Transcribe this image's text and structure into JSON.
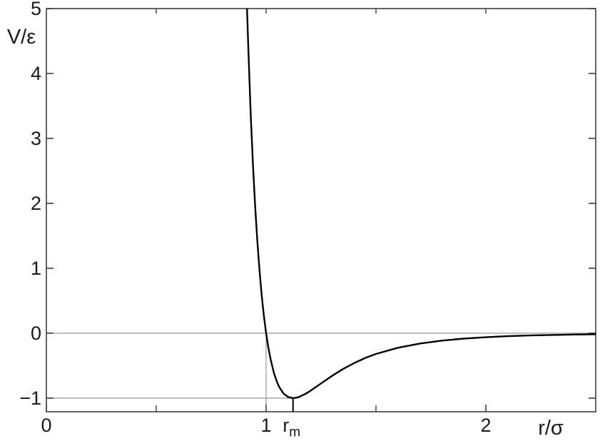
{
  "chart_data": {
    "type": "line",
    "xlabel": "r/σ",
    "ylabel": "V/ε",
    "xlim": [
      0,
      2.5
    ],
    "ylim": [
      -1.21,
      5
    ],
    "grid": false,
    "legend": "none",
    "x_ticks": [
      {
        "value": 0,
        "label": "0"
      },
      {
        "value": 1,
        "label": "1"
      },
      {
        "value": 2,
        "label": "2"
      }
    ],
    "x_minor_ticks": [
      0.5,
      1.5
    ],
    "x_top_ticks": [
      0.5,
      1,
      1.5,
      2
    ],
    "y_ticks": [
      {
        "value": 5,
        "label": "5"
      },
      {
        "value": 4,
        "label": "4"
      },
      {
        "value": 3,
        "label": "3"
      },
      {
        "value": 2,
        "label": "2"
      },
      {
        "value": 1,
        "label": "1"
      },
      {
        "value": 0,
        "label": "0"
      },
      {
        "value": -1,
        "label": "−1"
      }
    ],
    "special_tick": {
      "value": 1.1225,
      "label": "r",
      "sub": "m"
    },
    "reference_lines": [
      {
        "name": "zero-line",
        "orientation": "horizontal",
        "value": 0,
        "from_r": 0,
        "to_r": 2.5
      },
      {
        "name": "well-depth-line",
        "orientation": "horizontal",
        "value": -1,
        "from_r": 0,
        "to_r": 1.1225
      },
      {
        "name": "sigma-crossing-line",
        "orientation": "vertical",
        "value": 1,
        "from_v": 0,
        "to_v": -1.21
      }
    ],
    "minimum_marker": {
      "r": 1.1225,
      "v": -1
    },
    "series": [
      {
        "name": "lennard-jones-potential",
        "points": [
          [
            0.9131,
            5.0
          ],
          [
            0.92,
            4.283
          ],
          [
            0.93,
            3.373
          ],
          [
            0.94,
            2.607
          ],
          [
            0.95,
            1.961
          ],
          [
            0.96,
            1.418
          ],
          [
            0.97,
            0.963
          ],
          [
            0.98,
            0.582
          ],
          [
            0.99,
            0.264
          ],
          [
            1.0,
            0.0
          ],
          [
            1.01,
            -0.218
          ],
          [
            1.02,
            -0.398
          ],
          [
            1.035,
            -0.607
          ],
          [
            1.05,
            -0.757
          ],
          [
            1.06,
            -0.832
          ],
          [
            1.08,
            -0.932
          ],
          [
            1.1,
            -0.983
          ],
          [
            1.1225,
            -1.0
          ],
          [
            1.14,
            -0.992
          ],
          [
            1.15,
            -0.982
          ],
          [
            1.18,
            -0.933
          ],
          [
            1.2,
            -0.891
          ],
          [
            1.25,
            -0.774
          ],
          [
            1.3,
            -0.657
          ],
          [
            1.35,
            -0.552
          ],
          [
            1.4,
            -0.461
          ],
          [
            1.45,
            -0.384
          ],
          [
            1.5,
            -0.32
          ],
          [
            1.6,
            -0.224
          ],
          [
            1.7,
            -0.159
          ],
          [
            1.8,
            -0.114
          ],
          [
            1.9,
            -0.083
          ],
          [
            2.0,
            -0.062
          ],
          [
            2.1,
            -0.046
          ],
          [
            2.2,
            -0.035
          ],
          [
            2.3,
            -0.027
          ],
          [
            2.4,
            -0.021
          ],
          [
            2.5,
            -0.016
          ]
        ]
      }
    ]
  },
  "colors": {
    "background": "#ffffff",
    "curve": "#000000",
    "frame": "#3d3d3d",
    "reference": "#8c8c8c",
    "text": "#1a1a1a"
  }
}
